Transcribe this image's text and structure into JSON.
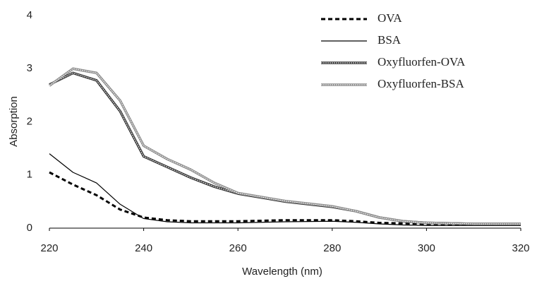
{
  "chart_data": {
    "type": "line",
    "xlabel": "Wavelength (nm)",
    "ylabel": "Absorption",
    "x": [
      220,
      225,
      230,
      235,
      240,
      245,
      250,
      255,
      260,
      270,
      280,
      285,
      290,
      295,
      300,
      310,
      320
    ],
    "series": [
      {
        "name": "OVA",
        "color": "#000000",
        "style": "dashed",
        "values": [
          1.05,
          0.82,
          0.62,
          0.35,
          0.2,
          0.15,
          0.13,
          0.13,
          0.13,
          0.15,
          0.15,
          0.13,
          0.1,
          0.09,
          0.08,
          0.07,
          0.07
        ]
      },
      {
        "name": "BSA",
        "color": "#000000",
        "style": "solid",
        "values": [
          1.4,
          1.05,
          0.85,
          0.45,
          0.18,
          0.12,
          0.1,
          0.1,
          0.1,
          0.12,
          0.13,
          0.11,
          0.08,
          0.06,
          0.05,
          0.05,
          0.05
        ]
      },
      {
        "name": "Oxyfluorfen-OVA",
        "color": "#333333",
        "style": "double",
        "values": [
          2.7,
          2.92,
          2.78,
          2.2,
          1.35,
          1.15,
          0.95,
          0.78,
          0.65,
          0.5,
          0.4,
          0.32,
          0.2,
          0.13,
          0.1,
          0.08,
          0.08
        ]
      },
      {
        "name": "Oxyfluorfen-BSA",
        "color": "#8a8a8a",
        "style": "double",
        "values": [
          2.68,
          3.0,
          2.92,
          2.4,
          1.55,
          1.3,
          1.1,
          0.85,
          0.66,
          0.51,
          0.41,
          0.32,
          0.2,
          0.13,
          0.1,
          0.08,
          0.08
        ]
      }
    ],
    "xlim": [
      220,
      320
    ],
    "xticks": [
      220,
      240,
      260,
      280,
      300,
      320
    ],
    "ylim": [
      0,
      4
    ],
    "yticks": [
      0,
      1,
      2,
      3,
      4
    ],
    "legend": "upper right",
    "grid": false
  }
}
